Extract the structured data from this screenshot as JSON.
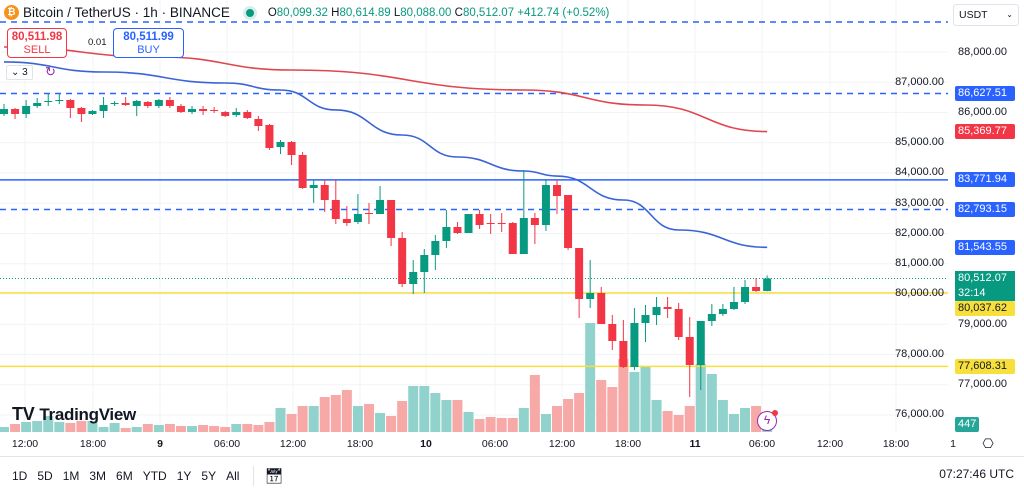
{
  "header": {
    "symbol": "Bitcoin / TetherUS · 1h · BINANCE",
    "coin_icon": "bitcoin-icon",
    "open_label": "O",
    "open": "80,099.32",
    "high_label": "H",
    "high": "80,614.89",
    "low_label": "L",
    "low": "80,088.00",
    "close_label": "C",
    "close": "80,512.07",
    "change": "+412.74 (+0.52%)",
    "status_color": "#089981"
  },
  "trade": {
    "sell_price": "80,511.98",
    "sell_label": "SELL",
    "spread": "0.01",
    "buy_price": "80,511.99",
    "buy_label": "BUY"
  },
  "indicators": {
    "collapsed_count": "3"
  },
  "currency": {
    "selected": "USDT"
  },
  "price_axis": [
    "88,000.00",
    "87,000.00",
    "86,000.00",
    "85,000.00",
    "84,000.00",
    "83,000.00",
    "82,000.00",
    "81,000.00",
    "80,000.00",
    "79,000.00",
    "78,000.00",
    "77,000.00",
    "76,000.00"
  ],
  "badges": [
    {
      "text": "86,627.51",
      "color": "#2962ff"
    },
    {
      "text": "85,369.77",
      "color": "#f23645"
    },
    {
      "text": "83,771.94",
      "color": "#2962ff"
    },
    {
      "text": "82,793.15",
      "color": "#2962ff"
    },
    {
      "text": "81,543.55",
      "color": "#2962ff"
    },
    {
      "text": "80,512.07",
      "color": "#089981"
    },
    {
      "text": "32:14",
      "color": "#089981"
    },
    {
      "text": "80,037.62",
      "color": "#f7e03c"
    },
    {
      "text": "77,608.31",
      "color": "#f7e03c"
    },
    {
      "text": "447",
      "color": "#26a69a"
    }
  ],
  "time_axis": [
    "12:00",
    "18:00",
    "9",
    "06:00",
    "12:00",
    "18:00",
    "10",
    "06:00",
    "12:00",
    "18:00",
    "11",
    "06:00",
    "12:00",
    "18:00"
  ],
  "scale_mode": "1",
  "ranges": [
    "1D",
    "5D",
    "1M",
    "3M",
    "6M",
    "YTD",
    "1Y",
    "5Y",
    "All"
  ],
  "clock": "07:27:46 UTC",
  "branding": "TradingView",
  "chart_data": {
    "type": "candlestick",
    "interval": "1h",
    "first_bar": "8th 10:00",
    "last_bar": "11th 07:00",
    "ylim": [
      75500,
      89000
    ],
    "colors": {
      "up": "#089981",
      "down": "#f23645",
      "vol_up": "#92d2cc",
      "vol_down": "#f7a9a7"
    },
    "ohlc": [
      [
        85950,
        86281,
        85884,
        86115
      ],
      [
        86115,
        86149,
        85785,
        85950
      ],
      [
        85950,
        86413,
        85818,
        86215
      ],
      [
        86215,
        86479,
        86149,
        86314
      ],
      [
        86347,
        86611,
        86215,
        86380
      ],
      [
        86380,
        86611,
        86281,
        86413
      ],
      [
        86413,
        86446,
        85818,
        86149
      ],
      [
        86149,
        86182,
        85686,
        85950
      ],
      [
        85950,
        86082,
        85917,
        86049
      ],
      [
        86049,
        86512,
        85818,
        86248
      ],
      [
        86281,
        86380,
        86215,
        86314
      ],
      [
        86314,
        86512,
        86215,
        86248
      ],
      [
        86215,
        86413,
        85884,
        86380
      ],
      [
        86347,
        86380,
        86149,
        86215
      ],
      [
        86215,
        86446,
        86149,
        86413
      ],
      [
        86413,
        86512,
        86149,
        86215
      ],
      [
        86215,
        86281,
        85983,
        86016
      ],
      [
        86016,
        86215,
        85950,
        86115
      ],
      [
        86115,
        86215,
        85917,
        86049
      ],
      [
        86082,
        86182,
        85983,
        86049
      ],
      [
        86016,
        86049,
        85851,
        85884
      ],
      [
        85917,
        86149,
        85851,
        86016
      ],
      [
        86016,
        86082,
        85785,
        85818
      ],
      [
        85785,
        85884,
        85388,
        85553
      ],
      [
        85587,
        85620,
        84760,
        84826
      ],
      [
        84859,
        85091,
        84628,
        85024
      ],
      [
        85024,
        85058,
        84264,
        84595
      ],
      [
        84595,
        84694,
        83471,
        83504
      ],
      [
        83504,
        83768,
        83008,
        83603
      ],
      [
        83603,
        83768,
        82710,
        83107
      ],
      [
        83107,
        83768,
        82314,
        82479
      ],
      [
        82479,
        82909,
        82247,
        82347
      ],
      [
        82380,
        83305,
        82314,
        82644
      ],
      [
        82677,
        83008,
        82314,
        82670
      ],
      [
        82644,
        83570,
        82644,
        83107
      ],
      [
        83107,
        83107,
        81586,
        81851
      ],
      [
        81851,
        82049,
        80231,
        80330
      ],
      [
        80330,
        81123,
        79999,
        80727
      ],
      [
        80727,
        81487,
        80032,
        81289
      ],
      [
        81289,
        81950,
        80793,
        81752
      ],
      [
        81752,
        82776,
        81520,
        82214
      ],
      [
        82214,
        82380,
        81983,
        82016
      ],
      [
        82016,
        82644,
        82016,
        82644
      ],
      [
        82644,
        82776,
        82148,
        82280
      ],
      [
        82347,
        82644,
        81983,
        82314
      ],
      [
        82347,
        82677,
        82049,
        82340
      ],
      [
        82347,
        82380,
        81322,
        81322
      ],
      [
        81322,
        84099,
        81322,
        82512
      ],
      [
        82512,
        82677,
        81652,
        82280
      ],
      [
        82280,
        83801,
        82082,
        83603
      ],
      [
        83603,
        83768,
        82644,
        83239
      ],
      [
        83272,
        83272,
        81454,
        81520
      ],
      [
        81520,
        81520,
        79206,
        79834
      ],
      [
        79834,
        81123,
        79537,
        80032
      ],
      [
        80032,
        80231,
        79008,
        79008
      ],
      [
        79008,
        79305,
        78148,
        78446
      ],
      [
        78446,
        79140,
        77553,
        77586
      ],
      [
        77586,
        79537,
        77487,
        79041
      ],
      [
        79041,
        79636,
        78412,
        79305
      ],
      [
        79305,
        79900,
        78974,
        79570
      ],
      [
        79570,
        79900,
        79206,
        79504
      ],
      [
        79504,
        79702,
        78479,
        78578
      ],
      [
        78578,
        79239,
        76594,
        77652
      ],
      [
        77652,
        79107,
        76826,
        79107
      ],
      [
        79107,
        79669,
        78941,
        79338
      ],
      [
        79338,
        79669,
        79272,
        79504
      ],
      [
        79504,
        80231,
        79470,
        79735
      ],
      [
        79735,
        80462,
        79669,
        80231
      ],
      [
        80231,
        80528,
        80065,
        80099
      ],
      [
        80099.32,
        80614.89,
        80088,
        80512.07
      ]
    ],
    "volume": [
      160,
      256,
      320,
      352,
      512,
      320,
      288,
      352,
      352,
      160,
      288,
      128,
      160,
      256,
      224,
      256,
      192,
      192,
      224,
      192,
      160,
      256,
      256,
      224,
      320,
      768,
      576,
      832,
      832,
      1120,
      1184,
      1344,
      832,
      896,
      608,
      512,
      992,
      1472,
      1472,
      1248,
      1024,
      1024,
      640,
      416,
      480,
      448,
      448,
      768,
      1824,
      576,
      832,
      1056,
      1248,
      3488,
      1664,
      1440,
      2336,
      1920,
      2112,
      1024,
      672,
      544,
      832,
      2176,
      1856,
      1024,
      576,
      768,
      832,
      447
    ],
    "moving_averages": [
      {
        "color": "#e0464e",
        "points": [
          [
            0,
            88165
          ],
          [
            14,
            87835
          ],
          [
            26,
            87405
          ],
          [
            47,
            86744
          ],
          [
            58,
            86248
          ],
          [
            69,
            85369.77
          ]
        ]
      },
      {
        "color": "#3a63d8",
        "points": [
          [
            0,
            87670
          ],
          [
            9,
            87339
          ],
          [
            20,
            86975
          ],
          [
            25,
            86744
          ],
          [
            30,
            86083
          ],
          [
            36,
            85256
          ],
          [
            41,
            84529
          ],
          [
            47,
            84066
          ],
          [
            50,
            83900
          ],
          [
            56,
            83107
          ],
          [
            61,
            82115
          ],
          [
            69,
            81543.55
          ]
        ]
      }
    ],
    "levels": [
      {
        "price": 89000,
        "style": "dashed",
        "color": "#2962ff"
      },
      {
        "price": 86627.51,
        "style": "dashed",
        "color": "#2962ff"
      },
      {
        "price": 83771.94,
        "style": "solid",
        "color": "#2962ff"
      },
      {
        "price": 82793.15,
        "style": "dashed",
        "color": "#2962ff"
      },
      {
        "price": 80512.07,
        "style": "dotted",
        "color": "#089981"
      },
      {
        "price": 80037.62,
        "style": "solid",
        "color": "#f7e03c"
      },
      {
        "price": 77608.31,
        "style": "solid",
        "color": "#f7e03c"
      }
    ]
  }
}
